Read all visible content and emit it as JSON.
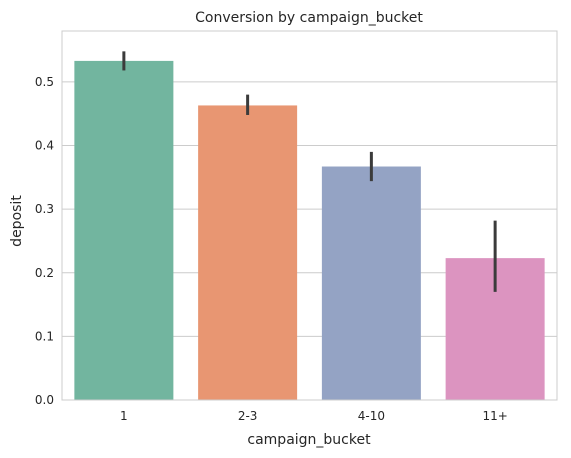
{
  "chart_data": {
    "type": "bar",
    "title": "Conversion by campaign_bucket",
    "xlabel": "campaign_bucket",
    "ylabel": "deposit",
    "categories": [
      "1",
      "2-3",
      "4-10",
      "11+"
    ],
    "values": [
      0.533,
      0.463,
      0.367,
      0.223
    ],
    "error_bars": [
      {
        "low": 0.518,
        "high": 0.548
      },
      {
        "low": 0.448,
        "high": 0.48
      },
      {
        "low": 0.344,
        "high": 0.39
      },
      {
        "low": 0.17,
        "high": 0.282
      }
    ],
    "colors": [
      "#72b59f",
      "#e89672",
      "#94a3c4",
      "#dc94c0"
    ],
    "ylim": [
      0,
      0.58
    ],
    "yticks": [
      "0.0",
      "0.1",
      "0.2",
      "0.3",
      "0.4",
      "0.5"
    ],
    "grid": true
  }
}
